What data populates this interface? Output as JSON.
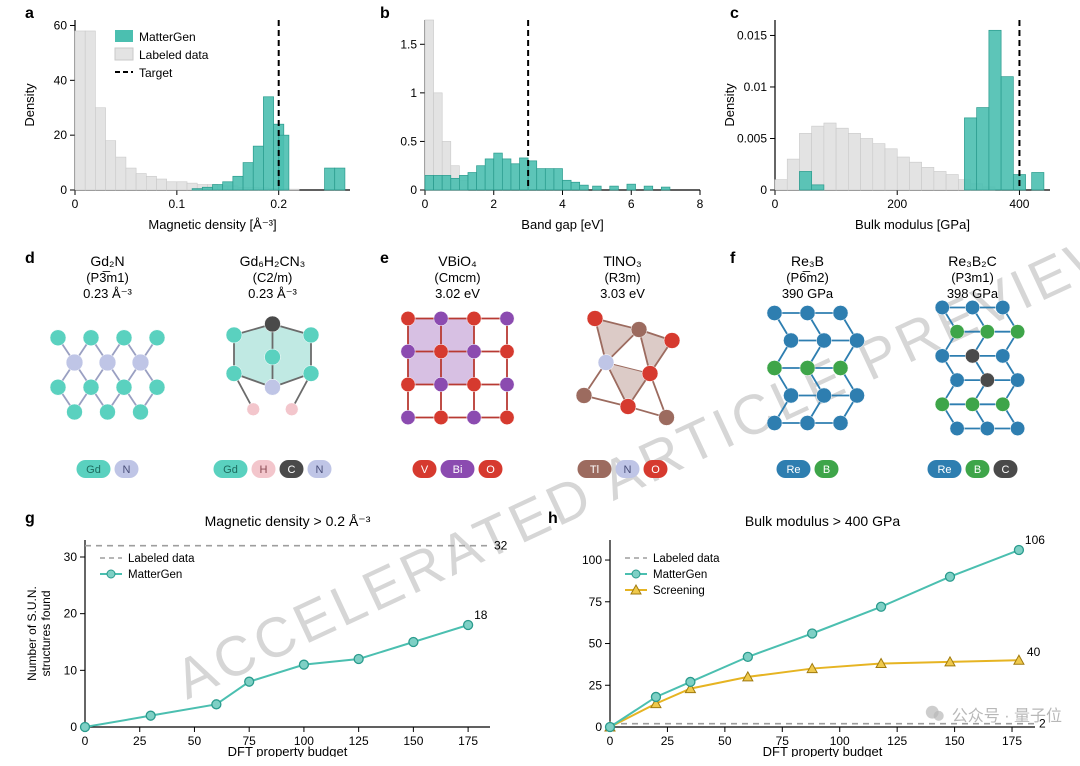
{
  "watermark": {
    "text": "ACCELERATED ARTICLE PREVIEW",
    "color": "#d6d6d6"
  },
  "colors": {
    "mattergen": "#4bbfb0",
    "mattergen_light": "#7ed0c5",
    "labeled": "#e3e3e3",
    "labeled_dark": "#c9c9c9",
    "target": "#000000",
    "axis": "#000000",
    "grid": "#999999",
    "screening": "#e6b422",
    "screening_fill": "#efc94c"
  },
  "panelA": {
    "label": "a",
    "type": "histogram",
    "xlabel": "Magnetic density [Å⁻³]",
    "ylabel": "Density",
    "xlim": [
      0,
      0.27
    ],
    "ylim": [
      0,
      62
    ],
    "xticks": [
      0.0,
      0.1,
      0.2
    ],
    "yticks": [
      0,
      20,
      40,
      60
    ],
    "target": 0.2,
    "legend": [
      "MatterGen",
      "Labeled data",
      "Target"
    ],
    "binW": 0.01,
    "labeled": {
      "x": [
        0.005,
        0.015,
        0.025,
        0.035,
        0.045,
        0.055,
        0.065,
        0.075,
        0.085,
        0.095,
        0.105,
        0.115,
        0.125,
        0.135,
        0.145,
        0.155,
        0.165,
        0.175,
        0.185,
        0.195,
        0.205,
        0.215
      ],
      "h": [
        58,
        58,
        30,
        18,
        12,
        8,
        6,
        5,
        4,
        3,
        3,
        2.5,
        2,
        2,
        1.5,
        1.5,
        1,
        1,
        0.8,
        0.6,
        0.5,
        0.3
      ]
    },
    "mattergen": {
      "x": [
        0.12,
        0.13,
        0.14,
        0.15,
        0.16,
        0.17,
        0.18,
        0.19,
        0.2,
        0.205,
        0.25,
        0.26
      ],
      "h": [
        0.5,
        1,
        2,
        3,
        5,
        10,
        16,
        34,
        24,
        20,
        8,
        8
      ]
    }
  },
  "panelB": {
    "label": "b",
    "type": "histogram",
    "xlabel": "Band gap [eV]",
    "ylabel": "",
    "xlim": [
      0,
      8
    ],
    "ylim": [
      0,
      1.75
    ],
    "xticks": [
      0,
      2,
      4,
      6,
      8
    ],
    "yticks": [
      0,
      0.5,
      1.0,
      1.5
    ],
    "target": 3.0,
    "binW": 0.25,
    "labeled": {
      "x": [
        0.125,
        0.375,
        0.625,
        0.875,
        1.125
      ],
      "h": [
        1.75,
        1.0,
        0.5,
        0.25,
        0.1
      ]
    },
    "mattergen": {
      "x": [
        0.125,
        0.375,
        0.625,
        0.875,
        1.125,
        1.375,
        1.625,
        1.875,
        2.125,
        2.375,
        2.625,
        2.875,
        3.125,
        3.375,
        3.625,
        3.875,
        4.125,
        4.375,
        4.625,
        5.0,
        5.5,
        6.0,
        6.5,
        7.0
      ],
      "h": [
        0.15,
        0.15,
        0.15,
        0.12,
        0.15,
        0.18,
        0.25,
        0.32,
        0.38,
        0.32,
        0.27,
        0.33,
        0.3,
        0.22,
        0.22,
        0.22,
        0.1,
        0.08,
        0.05,
        0.04,
        0.04,
        0.06,
        0.04,
        0.03
      ]
    }
  },
  "panelC": {
    "label": "c",
    "type": "histogram",
    "xlabel": "Bulk modulus [GPa]",
    "ylabel": "Density",
    "xlim": [
      0,
      450
    ],
    "ylim": [
      0,
      0.0165
    ],
    "xticks": [
      0,
      200,
      400
    ],
    "yticks": [
      0,
      0.005,
      0.01,
      0.015
    ],
    "target": 400,
    "binW": 20,
    "labeled": {
      "x": [
        10,
        30,
        50,
        70,
        90,
        110,
        130,
        150,
        170,
        190,
        210,
        230,
        250,
        270,
        290,
        310,
        330,
        350
      ],
      "h": [
        0.001,
        0.003,
        0.0055,
        0.0062,
        0.0065,
        0.006,
        0.0055,
        0.005,
        0.0045,
        0.004,
        0.0032,
        0.0027,
        0.0022,
        0.0018,
        0.0015,
        0.001,
        0.0006,
        0.0003
      ]
    },
    "mattergen": {
      "x": [
        50,
        70,
        320,
        340,
        360,
        380,
        400,
        430
      ],
      "h": [
        0.0018,
        0.0005,
        0.007,
        0.008,
        0.0155,
        0.011,
        0.0015,
        0.0017
      ]
    }
  },
  "panelD": {
    "label": "d",
    "structures": [
      {
        "formula": "Gd₂N",
        "sg": "(P3̅m1)",
        "value": "0.23 Å⁻³",
        "elements": [
          {
            "sym": "Gd",
            "bg": "#5ad1bf",
            "fg": "#1e6b5f"
          },
          {
            "sym": "N",
            "bg": "#bfc5e6",
            "fg": "#4a4f7a"
          }
        ]
      },
      {
        "formula": "Gd₆H₂CN₃",
        "sg": "(C2/m)",
        "value": "0.23 Å⁻³",
        "elements": [
          {
            "sym": "Gd",
            "bg": "#5ad1bf",
            "fg": "#1e6b5f"
          },
          {
            "sym": "H",
            "bg": "#f3c6cc",
            "fg": "#8a4a52"
          },
          {
            "sym": "C",
            "bg": "#4a4a4a",
            "fg": "#ffffff"
          },
          {
            "sym": "N",
            "bg": "#bfc5e6",
            "fg": "#4a4f7a"
          }
        ]
      }
    ]
  },
  "panelE": {
    "label": "e",
    "structures": [
      {
        "formula": "VBiO₄",
        "sg": "(Cmcm)",
        "value": "3.02 eV",
        "elements": [
          {
            "sym": "V",
            "bg": "#d63a2f",
            "fg": "#ffffff"
          },
          {
            "sym": "Bi",
            "bg": "#8b4bb0",
            "fg": "#ffffff"
          },
          {
            "sym": "O",
            "bg": "#d63a2f",
            "fg": "#ffffff"
          }
        ]
      },
      {
        "formula": "TlNO₃",
        "sg": "(R3m)",
        "value": "3.03 eV",
        "elements": [
          {
            "sym": "Tl",
            "bg": "#9c6b5f",
            "fg": "#ffffff"
          },
          {
            "sym": "N",
            "bg": "#bfc5e6",
            "fg": "#4a4f7a"
          },
          {
            "sym": "O",
            "bg": "#d63a2f",
            "fg": "#ffffff"
          }
        ]
      }
    ]
  },
  "panelF": {
    "label": "f",
    "structures": [
      {
        "formula": "Re₃B",
        "sg": "(P6̅m2)",
        "value": "390 GPa",
        "elements": [
          {
            "sym": "Re",
            "bg": "#2e7eb0",
            "fg": "#ffffff"
          },
          {
            "sym": "B",
            "bg": "#3ea549",
            "fg": "#ffffff"
          }
        ]
      },
      {
        "formula": "Re₃B₂C",
        "sg": "(P3m1)",
        "value": "398 GPa",
        "elements": [
          {
            "sym": "Re",
            "bg": "#2e7eb0",
            "fg": "#ffffff"
          },
          {
            "sym": "B",
            "bg": "#3ea549",
            "fg": "#ffffff"
          },
          {
            "sym": "C",
            "bg": "#4a4a4a",
            "fg": "#ffffff"
          }
        ]
      }
    ]
  },
  "panelG": {
    "label": "g",
    "title": "Magnetic density  > 0.2 Å⁻³",
    "xlabel": "DFT property budget",
    "ylabel": "Number of S.U.N.\nstructures found",
    "xlim": [
      0,
      185
    ],
    "ylim": [
      0,
      33
    ],
    "xticks": [
      0,
      25,
      50,
      75,
      100,
      125,
      150,
      175
    ],
    "yticks": [
      0,
      10,
      20,
      30
    ],
    "labeledLine": 32,
    "labeledLineLabel": "32",
    "mattergen": {
      "x": [
        0,
        30,
        60,
        75,
        100,
        125,
        150,
        175
      ],
      "y": [
        0,
        2,
        4,
        8,
        11,
        12,
        15,
        18
      ],
      "endLabel": "18"
    },
    "legendItems": [
      {
        "name": "Labeled data",
        "style": "dash",
        "color": "#9e9e9e"
      },
      {
        "name": "MatterGen",
        "style": "marker",
        "color": "#4bbfb0"
      }
    ]
  },
  "panelH": {
    "label": "h",
    "title": "Bulk modulus > 400 GPa",
    "xlabel": "DFT property budget",
    "xlim": [
      0,
      185
    ],
    "ylim": [
      0,
      112
    ],
    "xticks": [
      0,
      25,
      50,
      75,
      100,
      125,
      150,
      175
    ],
    "yticks": [
      0,
      25,
      50,
      75,
      100
    ],
    "labeledLine": 2,
    "labeledLineLabel": "2",
    "mattergen": {
      "x": [
        0,
        20,
        35,
        60,
        88,
        118,
        148,
        178
      ],
      "y": [
        0,
        18,
        27,
        42,
        56,
        72,
        90,
        106
      ],
      "endLabel": "106"
    },
    "screening": {
      "x": [
        0,
        20,
        35,
        60,
        88,
        118,
        148,
        178
      ],
      "y": [
        0,
        14,
        23,
        30,
        35,
        38,
        39,
        40
      ],
      "endLabel": "40"
    },
    "legendItems": [
      {
        "name": "Labeled data",
        "style": "dash",
        "color": "#9e9e9e"
      },
      {
        "name": "MatterGen",
        "style": "marker",
        "color": "#4bbfb0"
      },
      {
        "name": "Screening",
        "style": "triangle",
        "color": "#e6b422"
      }
    ]
  },
  "wechat": {
    "text": "公众号 · 量子位",
    "color": "#b8b8b8"
  }
}
